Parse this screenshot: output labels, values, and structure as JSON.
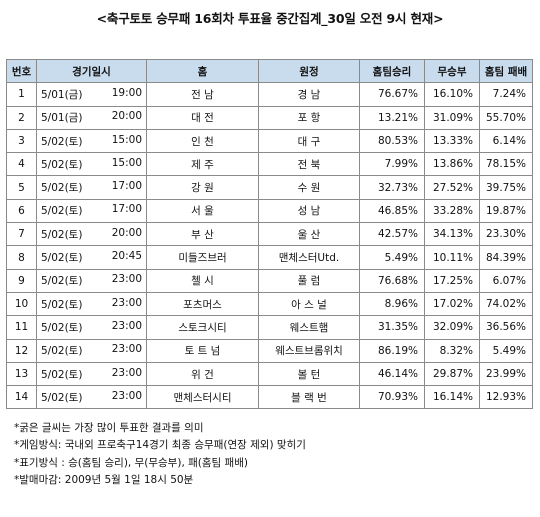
{
  "title": "<축구토토 승무패 16회차 투표율 중간집계_30일 오전 9시 현재>",
  "table": {
    "headers": [
      "번호",
      "경기일시",
      "홈",
      "원정",
      "홈팀승리",
      "무승부",
      "홈팀 패배"
    ],
    "rows": [
      {
        "no": "1",
        "date": "5/01(금)",
        "time": "19:00",
        "home": "전 남",
        "away": "경 남",
        "win": "76.67%",
        "draw": "16.10%",
        "lose": "7.24%"
      },
      {
        "no": "2",
        "date": "5/01(금)",
        "time": "20:00",
        "home": "대 전",
        "away": "포 항",
        "win": "13.21%",
        "draw": "31.09%",
        "lose": "55.70%"
      },
      {
        "no": "3",
        "date": "5/02(토)",
        "time": "15:00",
        "home": "인 천",
        "away": "대 구",
        "win": "80.53%",
        "draw": "13.33%",
        "lose": "6.14%"
      },
      {
        "no": "4",
        "date": "5/02(토)",
        "time": "15:00",
        "home": "제 주",
        "away": "전 북",
        "win": "7.99%",
        "draw": "13.86%",
        "lose": "78.15%"
      },
      {
        "no": "5",
        "date": "5/02(토)",
        "time": "17:00",
        "home": "강 원",
        "away": "수 원",
        "win": "32.73%",
        "draw": "27.52%",
        "lose": "39.75%"
      },
      {
        "no": "6",
        "date": "5/02(토)",
        "time": "17:00",
        "home": "서 울",
        "away": "성 남",
        "win": "46.85%",
        "draw": "33.28%",
        "lose": "19.87%"
      },
      {
        "no": "7",
        "date": "5/02(토)",
        "time": "20:00",
        "home": "부 산",
        "away": "울 산",
        "win": "42.57%",
        "draw": "34.13%",
        "lose": "23.30%"
      },
      {
        "no": "8",
        "date": "5/02(토)",
        "time": "20:45",
        "home": "미들즈브러",
        "away": "맨체스터Utd.",
        "win": "5.49%",
        "draw": "10.11%",
        "lose": "84.39%"
      },
      {
        "no": "9",
        "date": "5/02(토)",
        "time": "23:00",
        "home": "첼 시",
        "away": "풀 럼",
        "win": "76.68%",
        "draw": "17.25%",
        "lose": "6.07%"
      },
      {
        "no": "10",
        "date": "5/02(토)",
        "time": "23:00",
        "home": "포츠머스",
        "away": "아 스 널",
        "win": "8.96%",
        "draw": "17.02%",
        "lose": "74.02%"
      },
      {
        "no": "11",
        "date": "5/02(토)",
        "time": "23:00",
        "home": "스토크시티",
        "away": "웨스트햄",
        "win": "31.35%",
        "draw": "32.09%",
        "lose": "36.56%"
      },
      {
        "no": "12",
        "date": "5/02(토)",
        "time": "23:00",
        "home": "토 트 넘",
        "away": "웨스트브롬위치",
        "win": "86.19%",
        "draw": "8.32%",
        "lose": "5.49%"
      },
      {
        "no": "13",
        "date": "5/02(토)",
        "time": "23:00",
        "home": "위 건",
        "away": "볼 턴",
        "win": "46.14%",
        "draw": "29.87%",
        "lose": "23.99%"
      },
      {
        "no": "14",
        "date": "5/02(토)",
        "time": "23:00",
        "home": "맨체스터시티",
        "away": "블 랙 번",
        "win": "70.93%",
        "draw": "16.14%",
        "lose": "12.93%"
      }
    ]
  },
  "notes": [
    "*굵은 글씨는 가장 많이 투표한 결과를 의미",
    "*게임방식: 국내외 프로축구14경기 최종 승무패(연장 제외) 맞히기",
    "*표기방식 : 승(홈팀 승리), 무(무승부), 패(홈팀 패배)",
    "*발매마감: 2009년 5월 1일 18시 50분"
  ]
}
